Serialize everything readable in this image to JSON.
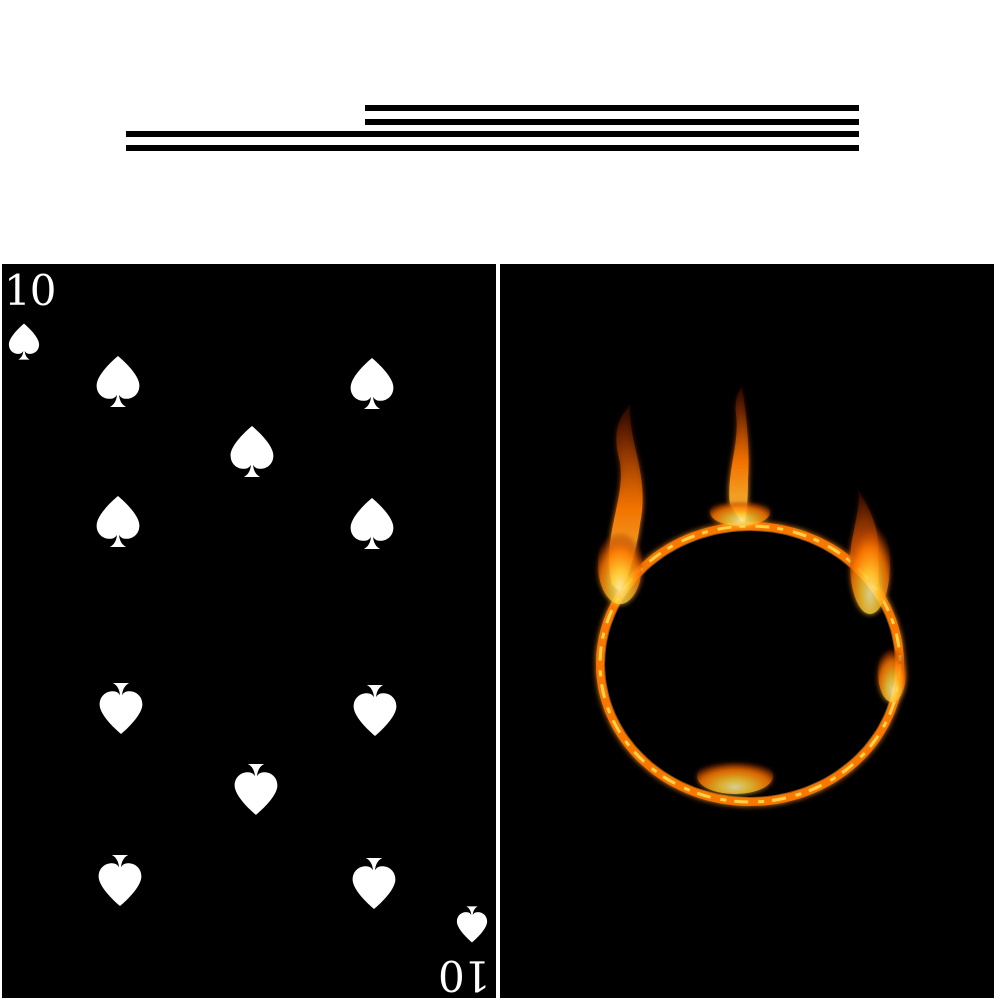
{
  "header": {
    "bars": [
      "progress-bar-1",
      "progress-bar-2",
      "progress-bar-3",
      "progress-bar-4"
    ]
  },
  "card": {
    "rank": "10",
    "suit": "spades",
    "suit_icon": "spade-icon",
    "card_color": "#000000",
    "pip_color": "#ffffff"
  },
  "fire_panel": {
    "icon": "ring-of-fire-icon",
    "flame_colors": [
      "#ffcc33",
      "#ff7a00",
      "#c23a00"
    ]
  }
}
